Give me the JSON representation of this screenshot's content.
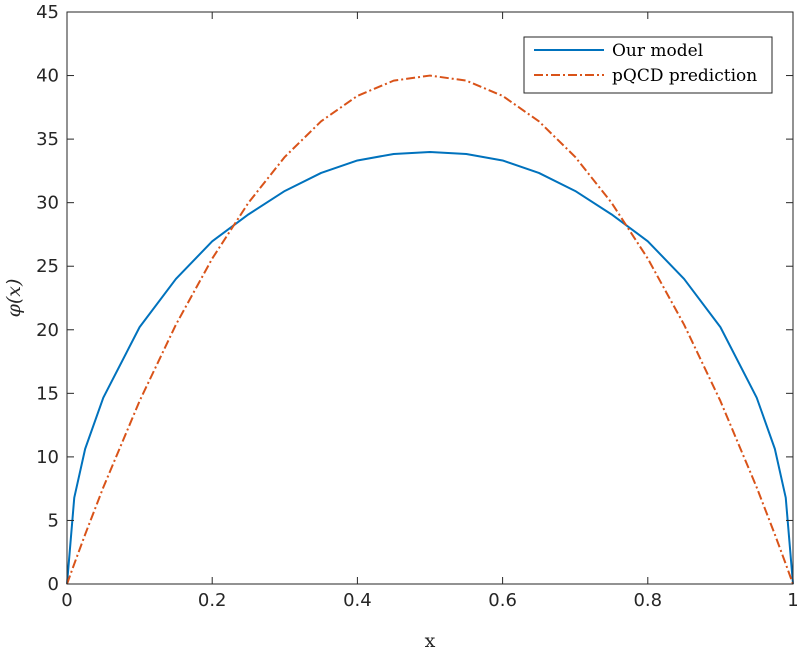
{
  "chart_data": {
    "type": "line",
    "title": "",
    "xlabel": "x",
    "ylabel": "φ(x)",
    "xlim": [
      0,
      1
    ],
    "ylim": [
      0,
      45
    ],
    "x_ticks": [
      "0",
      "0.2",
      "0.4",
      "0.6",
      "0.8",
      "1"
    ],
    "y_ticks": [
      "0",
      "5",
      "10",
      "15",
      "20",
      "25",
      "30",
      "35",
      "40",
      "45"
    ],
    "grid": false,
    "legend_position": "top-right",
    "x": [
      0,
      0.01,
      0.025,
      0.05,
      0.1,
      0.15,
      0.2,
      0.25,
      0.3,
      0.35,
      0.4,
      0.45,
      0.5,
      0.55,
      0.6,
      0.65,
      0.7,
      0.75,
      0.8,
      0.85,
      0.9,
      0.95,
      0.975,
      0.99,
      1
    ],
    "series": [
      {
        "name": "Our model",
        "style": "solid",
        "color": "#0072BD",
        "values": [
          0,
          6.79,
          10.63,
          14.66,
          20.21,
          24.0,
          26.96,
          29.08,
          30.92,
          32.34,
          33.32,
          33.83,
          33.99,
          33.83,
          33.32,
          32.34,
          30.92,
          29.08,
          26.96,
          24.0,
          20.21,
          14.66,
          10.63,
          6.79,
          0
        ]
      },
      {
        "name": "pQCD prediction",
        "style": "dash-dot",
        "color": "#D95319",
        "values": [
          0,
          1.58,
          3.9,
          7.6,
          14.4,
          20.4,
          25.6,
          30.0,
          33.6,
          36.4,
          38.4,
          39.6,
          40.0,
          39.6,
          38.4,
          36.4,
          33.6,
          30.0,
          25.6,
          20.4,
          14.4,
          7.6,
          3.9,
          1.58,
          0
        ]
      }
    ]
  }
}
